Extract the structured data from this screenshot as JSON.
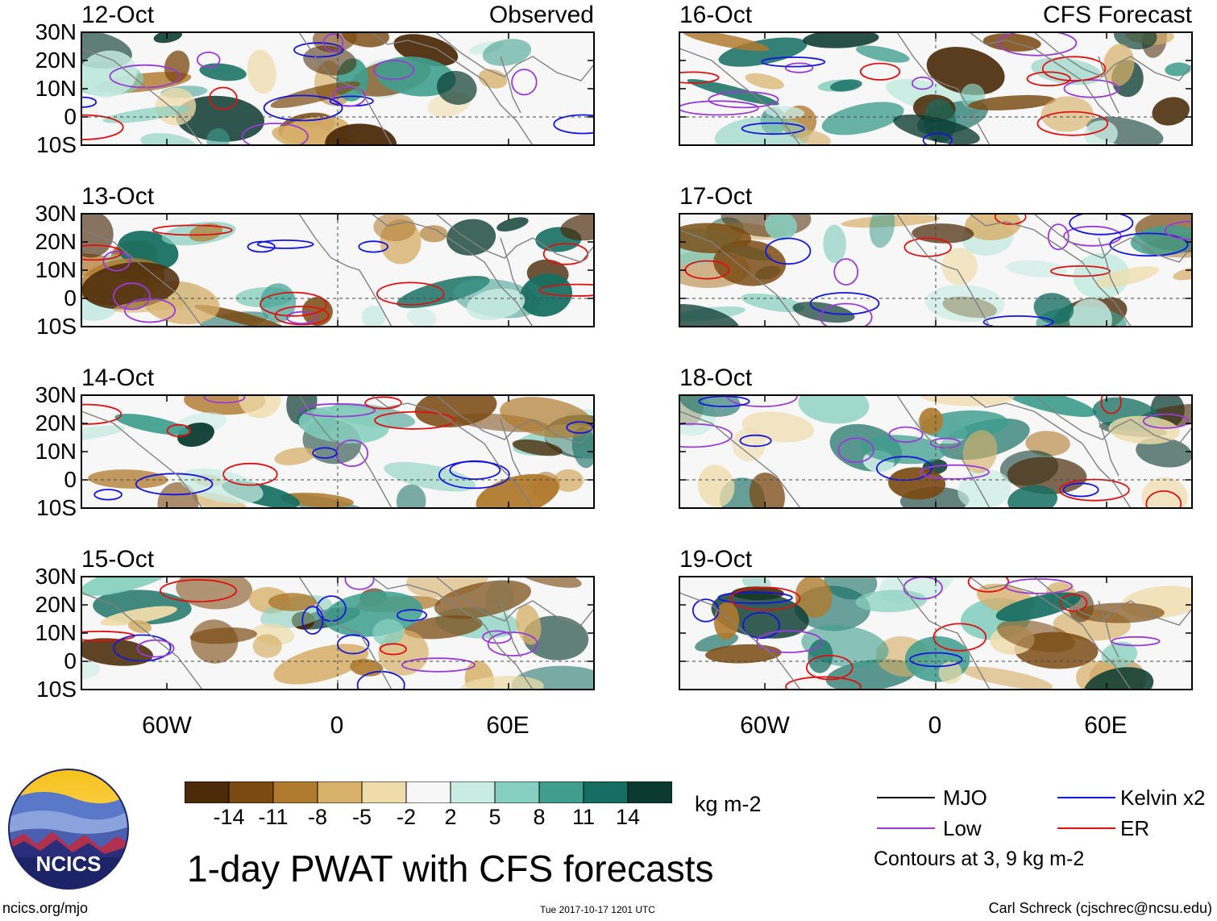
{
  "panels": {
    "observed": [
      {
        "date": "12-Oct",
        "title": "Observed"
      },
      {
        "date": "13-Oct",
        "title": ""
      },
      {
        "date": "14-Oct",
        "title": ""
      },
      {
        "date": "15-Oct",
        "title": ""
      }
    ],
    "forecast": [
      {
        "date": "16-Oct",
        "title": "CFS Forecast"
      },
      {
        "date": "17-Oct",
        "title": ""
      },
      {
        "date": "18-Oct",
        "title": ""
      },
      {
        "date": "19-Oct",
        "title": ""
      }
    ]
  },
  "axes": {
    "lat_labels": [
      "30N",
      "20N",
      "10N",
      "0",
      "10S"
    ],
    "lon_labels": [
      "60W",
      "0",
      "60E"
    ]
  },
  "colorbar": {
    "ticks": [
      "-14",
      "-11",
      "-8",
      "-5",
      "-2",
      "2",
      "5",
      "8",
      "11",
      "14"
    ],
    "colors": [
      "#4a2a08",
      "#7a4a12",
      "#b07a2e",
      "#d7b06a",
      "#efdcab",
      "#f7f7f7",
      "#c8ebe2",
      "#86cfbe",
      "#3f9e8e",
      "#166e62",
      "#0a3a30"
    ],
    "units": "kg m-2"
  },
  "main_title": "1-day PWAT with CFS forecasts",
  "legend": {
    "items": [
      {
        "label": "MJO",
        "color": "#000000"
      },
      {
        "label": "Kelvin x2",
        "color": "#1515e0"
      },
      {
        "label": "Low",
        "color": "#9a3ad8"
      },
      {
        "label": "ER",
        "color": "#e01010"
      }
    ],
    "note": "Contours at 3, 9 kg m-2"
  },
  "footer": {
    "site": "ncics.org/mjo",
    "timestamp": "Tue 2017-10-17 1201 UTC",
    "credit": "Carl Schreck (cjschrec@ncsu.edu)"
  },
  "logo": {
    "text": "NCICS"
  }
}
